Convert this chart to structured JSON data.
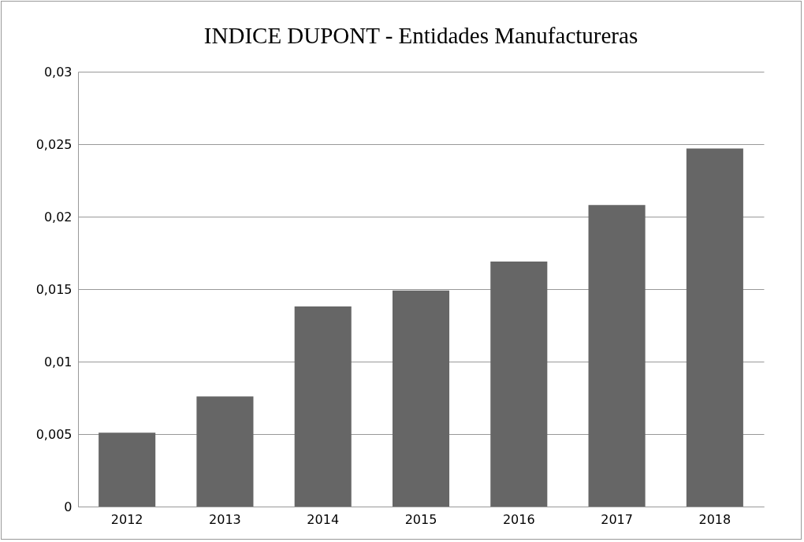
{
  "chart_data": {
    "type": "bar",
    "title": "INDICE DUPONT - Entidades Manufactureras",
    "categories": [
      "2012",
      "2013",
      "2014",
      "2015",
      "2016",
      "2017",
      "2018"
    ],
    "values": [
      0.0051,
      0.0076,
      0.0138,
      0.0149,
      0.0169,
      0.0208,
      0.0247
    ],
    "color": "#666666",
    "ylim": [
      0,
      0.03
    ],
    "yticks": [
      0,
      {
        "value": 0.005,
        "label": "0,005"
      },
      {
        "value": 0.01,
        "label": "0,01"
      },
      {
        "value": 0.015,
        "label": "0,015"
      },
      {
        "value": 0.02,
        "label": "0,02"
      },
      {
        "value": 0.025,
        "label": "0,025"
      },
      {
        "value": 0.03,
        "label": "0,03"
      }
    ],
    "grid": "y"
  }
}
